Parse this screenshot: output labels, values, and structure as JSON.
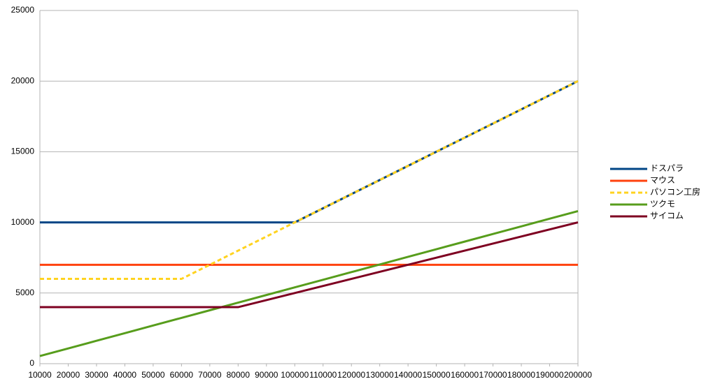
{
  "chart_data": {
    "type": "line",
    "x": [
      10000,
      20000,
      30000,
      40000,
      50000,
      60000,
      70000,
      80000,
      90000,
      100000,
      110000,
      120000,
      130000,
      140000,
      150000,
      160000,
      170000,
      180000,
      190000,
      200000
    ],
    "xlim": [
      10000,
      200000
    ],
    "xticks": [
      10000,
      20000,
      30000,
      40000,
      50000,
      60000,
      70000,
      80000,
      90000,
      100000,
      110000,
      120000,
      130000,
      140000,
      150000,
      160000,
      170000,
      180000,
      190000,
      200000
    ],
    "ylim": [
      0,
      25000
    ],
    "yticks": [
      0,
      5000,
      10000,
      15000,
      20000,
      25000
    ],
    "grid": true,
    "legend": "right",
    "series": [
      {
        "name": "ドスパラ",
        "color": "#004586",
        "values": [
          10000,
          10000,
          10000,
          10000,
          10000,
          10000,
          10000,
          10000,
          10000,
          10000,
          11000,
          12000,
          13000,
          14000,
          15000,
          16000,
          17000,
          18000,
          19000,
          20000
        ]
      },
      {
        "name": "マウス",
        "color": "#ff420e",
        "values": [
          7000,
          7000,
          7000,
          7000,
          7000,
          7000,
          7000,
          7000,
          7000,
          7000,
          7000,
          7000,
          7000,
          7000,
          7000,
          7000,
          7000,
          7000,
          7000,
          7000
        ]
      },
      {
        "name": "パソコン工房",
        "color": "#ffd320",
        "dash": true,
        "values": [
          6000,
          6000,
          6000,
          6000,
          6000,
          6000,
          7000,
          8000,
          9000,
          10000,
          11000,
          12000,
          13000,
          14000,
          15000,
          16000,
          17000,
          18000,
          19000,
          20000
        ]
      },
      {
        "name": "ツクモ",
        "color": "#579d1c",
        "values": [
          540,
          1080,
          1620,
          2160,
          2700,
          3240,
          3780,
          4320,
          4860,
          5400,
          5940,
          6480,
          7020,
          7560,
          8100,
          8640,
          9180,
          9720,
          10260,
          10800
        ]
      },
      {
        "name": "サイコム",
        "color": "#7e0021",
        "values": [
          4000,
          4000,
          4000,
          4000,
          4000,
          4000,
          4000,
          4000,
          4500,
          5000,
          5500,
          6000,
          6500,
          7000,
          7500,
          8000,
          8500,
          9000,
          9500,
          10000
        ]
      }
    ]
  }
}
